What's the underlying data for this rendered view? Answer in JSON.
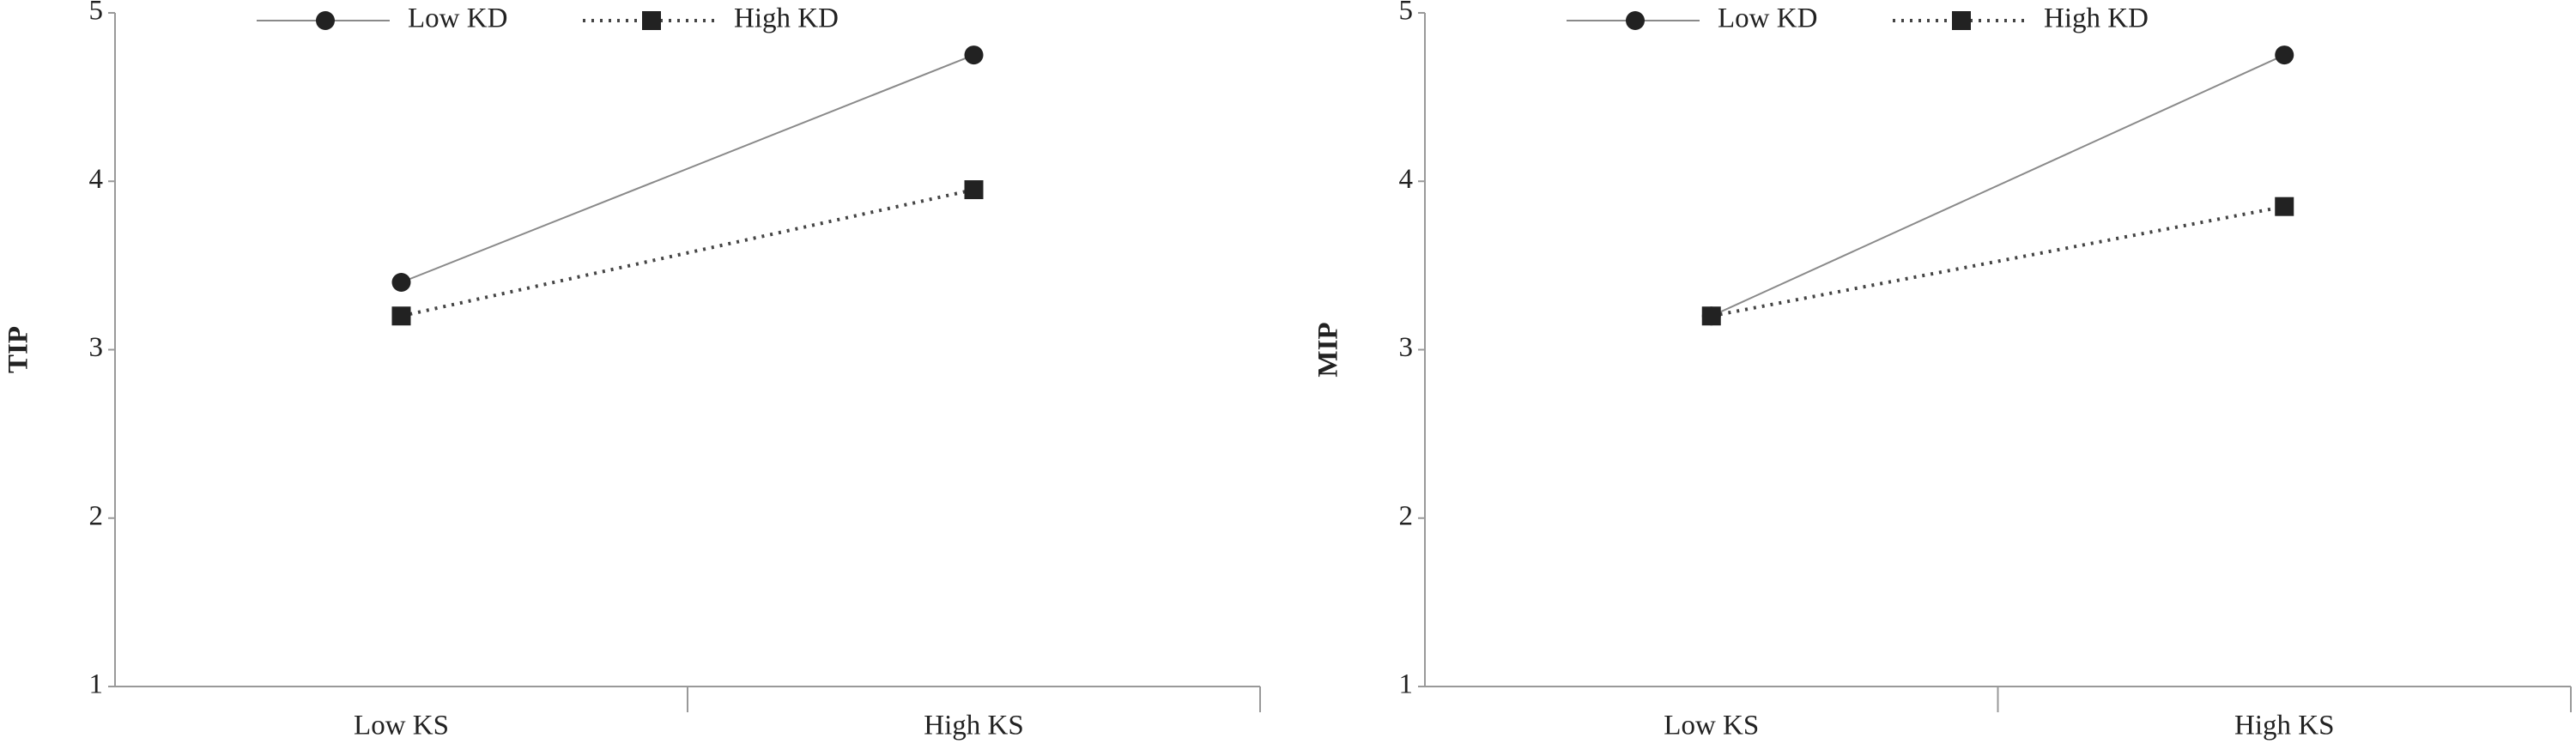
{
  "chart_data": [
    {
      "type": "line",
      "ylabel": "TIP",
      "categories": [
        "Low KS",
        "High KS"
      ],
      "ylim": [
        1,
        5
      ],
      "yticks": [
        1,
        2,
        3,
        4,
        5
      ],
      "series": [
        {
          "name": "Low KD",
          "color": "#222222",
          "line_color": "#8a8a8a",
          "dash": "solid",
          "marker": "circle",
          "values": [
            3.4,
            4.75
          ]
        },
        {
          "name": "High KD",
          "color": "#222222",
          "line_color": "#444444",
          "dash": "dotted",
          "marker": "square",
          "values": [
            3.2,
            3.95
          ]
        }
      ]
    },
    {
      "type": "line",
      "ylabel": "MIP",
      "categories": [
        "Low KS",
        "High KS"
      ],
      "ylim": [
        1,
        5
      ],
      "yticks": [
        1,
        2,
        3,
        4,
        5
      ],
      "series": [
        {
          "name": "Low KD",
          "color": "#222222",
          "line_color": "#8a8a8a",
          "dash": "solid",
          "marker": "circle",
          "values": [
            3.2,
            4.75
          ]
        },
        {
          "name": "High KD",
          "color": "#222222",
          "line_color": "#444444",
          "dash": "dotted",
          "marker": "square",
          "values": [
            3.2,
            3.85
          ]
        }
      ]
    }
  ]
}
